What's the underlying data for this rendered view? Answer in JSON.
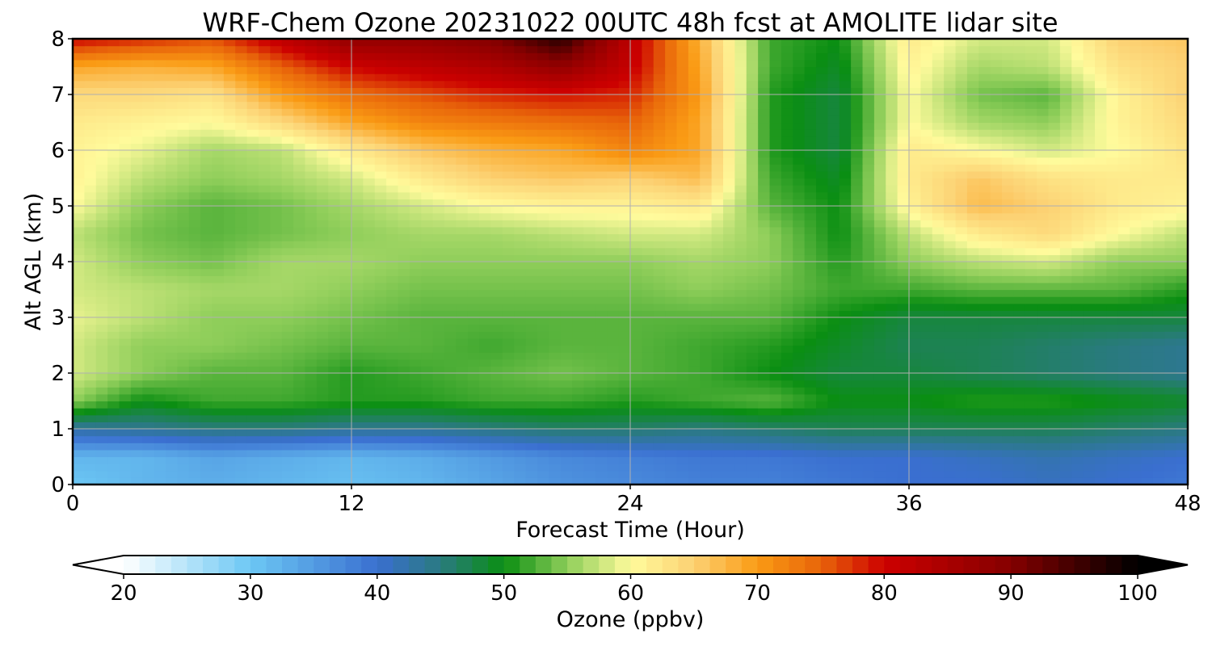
{
  "chart_data": {
    "type": "heatmap",
    "title": "WRF-Chem Ozone  20231022 00UTC 48h fcst at AMOLITE lidar site",
    "xlabel": "Forecast Time (Hour)",
    "ylabel": "Alt AGL (km)",
    "xlim": [
      0,
      48
    ],
    "ylim": [
      0,
      8
    ],
    "xticks": [
      0,
      12,
      24,
      36,
      48
    ],
    "yticks": [
      0,
      1,
      2,
      3,
      4,
      5,
      6,
      7,
      8
    ],
    "grid": true,
    "x": [
      0,
      3,
      6,
      9,
      12,
      15,
      18,
      21,
      24,
      27,
      30,
      33,
      36,
      39,
      42,
      45,
      48
    ],
    "y": [
      0,
      0.5,
      1,
      1.5,
      2,
      2.5,
      3,
      3.5,
      4,
      4.5,
      5,
      5.5,
      6,
      6.5,
      7,
      7.5,
      8
    ],
    "z": [
      [
        30,
        32,
        33,
        32,
        31,
        32,
        34,
        36,
        37,
        38,
        38,
        39,
        40,
        40,
        41,
        40,
        39
      ],
      [
        32,
        32,
        34,
        33,
        32,
        33,
        35,
        37,
        38,
        39,
        39,
        40,
        40,
        41,
        42,
        41,
        40
      ],
      [
        43,
        44,
        45,
        45,
        44,
        44,
        45,
        46,
        46,
        45,
        46,
        47,
        47,
        47,
        47,
        46,
        45
      ],
      [
        55,
        50,
        52,
        52,
        51,
        51,
        52,
        52,
        51,
        52,
        53,
        50,
        50,
        51,
        51,
        50,
        49
      ],
      [
        58,
        55,
        53,
        53,
        51,
        52,
        53,
        54,
        53,
        52,
        50,
        48,
        48,
        47,
        46,
        45,
        44
      ],
      [
        58,
        55,
        55,
        54,
        53,
        53,
        52,
        53,
        53,
        52,
        51,
        49,
        47,
        47,
        46,
        45,
        44
      ],
      [
        59,
        57,
        55,
        55,
        54,
        53,
        53,
        53,
        53,
        53,
        53,
        50,
        48,
        48,
        48,
        48,
        48
      ],
      [
        58,
        57,
        56,
        56,
        55,
        54,
        54,
        54,
        54,
        55,
        54,
        52,
        52,
        53,
        53,
        53,
        51
      ],
      [
        58,
        55,
        54,
        56,
        56,
        55,
        55,
        55,
        55,
        56,
        55,
        51,
        55,
        57,
        58,
        55,
        55
      ],
      [
        57,
        54,
        53,
        54,
        55,
        56,
        56,
        57,
        58,
        58,
        55,
        50,
        57,
        62,
        64,
        60,
        57
      ],
      [
        60,
        55,
        53,
        54,
        56,
        58,
        60,
        61,
        61,
        62,
        53,
        50,
        61,
        67,
        65,
        62,
        61
      ],
      [
        61,
        57,
        55,
        56,
        58,
        62,
        65,
        66,
        65,
        67,
        52,
        49,
        62,
        66,
        63,
        62,
        62
      ],
      [
        61,
        59,
        56,
        57,
        62,
        66,
        68,
        69,
        72,
        69,
        51,
        48,
        62,
        60,
        58,
        60,
        63
      ],
      [
        62,
        61,
        60,
        64,
        69,
        72,
        73,
        74,
        75,
        69,
        51,
        48,
        60,
        56,
        55,
        61,
        64
      ],
      [
        64,
        64,
        63,
        70,
        74,
        76,
        78,
        79,
        78,
        70,
        51,
        48,
        60,
        54,
        53,
        61,
        65
      ],
      [
        69,
        68,
        69,
        75,
        80,
        82,
        84,
        88,
        81,
        69,
        52,
        49,
        61,
        56,
        57,
        63,
        65
      ],
      [
        80,
        78,
        76,
        82,
        88,
        88,
        90,
        97,
        82,
        68,
        52,
        50,
        62,
        58,
        58,
        65,
        66
      ]
    ],
    "colorbar": {
      "label": "Ozone  (ppbv)",
      "min": 20,
      "max": 100,
      "ticks": [
        20,
        30,
        40,
        50,
        60,
        70,
        80,
        90,
        100
      ],
      "extend": "both",
      "stops": [
        {
          "v": 20,
          "c": "#ffffff"
        },
        {
          "v": 30,
          "c": "#6cc8f4"
        },
        {
          "v": 40,
          "c": "#3a6fd0"
        },
        {
          "v": 45,
          "c": "#2a7a80"
        },
        {
          "v": 50,
          "c": "#0a8e12"
        },
        {
          "v": 55,
          "c": "#8fce5a"
        },
        {
          "v": 60,
          "c": "#fffb9c"
        },
        {
          "v": 65,
          "c": "#fcd173"
        },
        {
          "v": 70,
          "c": "#fa9b14"
        },
        {
          "v": 75,
          "c": "#e8640a"
        },
        {
          "v": 80,
          "c": "#cc0000"
        },
        {
          "v": 90,
          "c": "#840000"
        },
        {
          "v": 100,
          "c": "#000000"
        }
      ]
    }
  }
}
